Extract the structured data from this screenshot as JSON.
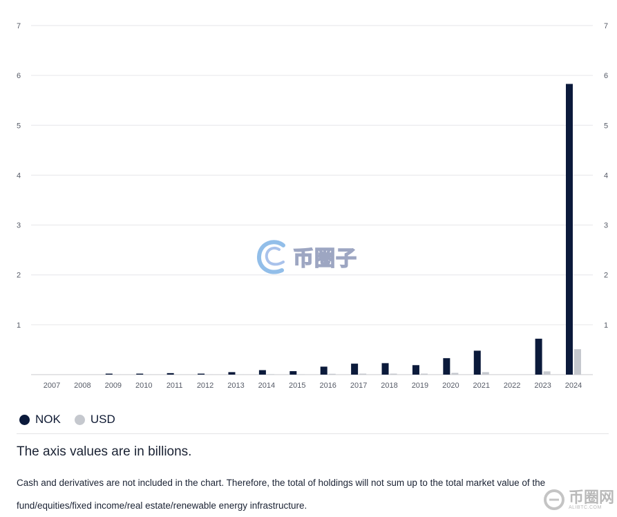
{
  "chart_data": {
    "type": "bar",
    "categories": [
      "2007",
      "2008",
      "2009",
      "2010",
      "2011",
      "2012",
      "2013",
      "2014",
      "2015",
      "2016",
      "2017",
      "2018",
      "2019",
      "2020",
      "2021",
      "2022",
      "2023",
      "2024"
    ],
    "series": [
      {
        "name": "NOK",
        "color": "#0b1a3b",
        "values": [
          0,
          0,
          0.02,
          0.02,
          0.03,
          0.02,
          0.05,
          0.09,
          0.07,
          0.16,
          0.22,
          0.23,
          0.19,
          0.33,
          0.48,
          0,
          0.72,
          5.83
        ]
      },
      {
        "name": "USD",
        "color": "#c5c8ce",
        "values": [
          0,
          0,
          0.002,
          0.002,
          0.003,
          0.002,
          0.005,
          0.01,
          0.008,
          0.017,
          0.02,
          0.02,
          0.02,
          0.035,
          0.05,
          0,
          0.065,
          0.51
        ]
      }
    ],
    "ylim": [
      0,
      7
    ],
    "yticks": [
      "0",
      "1",
      "2",
      "3",
      "4",
      "5",
      "6",
      "7"
    ],
    "ytick_labels_visible": [
      "1",
      "2",
      "3",
      "4",
      "5",
      "6",
      "7"
    ],
    "grid": true,
    "legend_position": "bottom-left"
  },
  "legend": {
    "items": [
      {
        "label": "NOK",
        "color": "#0b1a3b"
      },
      {
        "label": "USD",
        "color": "#c5c8ce"
      }
    ]
  },
  "axis_note": "The axis values are in billions.",
  "footnote": "Cash and derivatives are not included in the chart. Therefore, the total of holdings will not sum up to the total market value of the fund/equities/fixed income/real estate/renewable energy infrastructure.",
  "watermark": {
    "center_text": "币圈子",
    "corner_text": "币圈网",
    "corner_sub": "ALIBTC.COM"
  }
}
